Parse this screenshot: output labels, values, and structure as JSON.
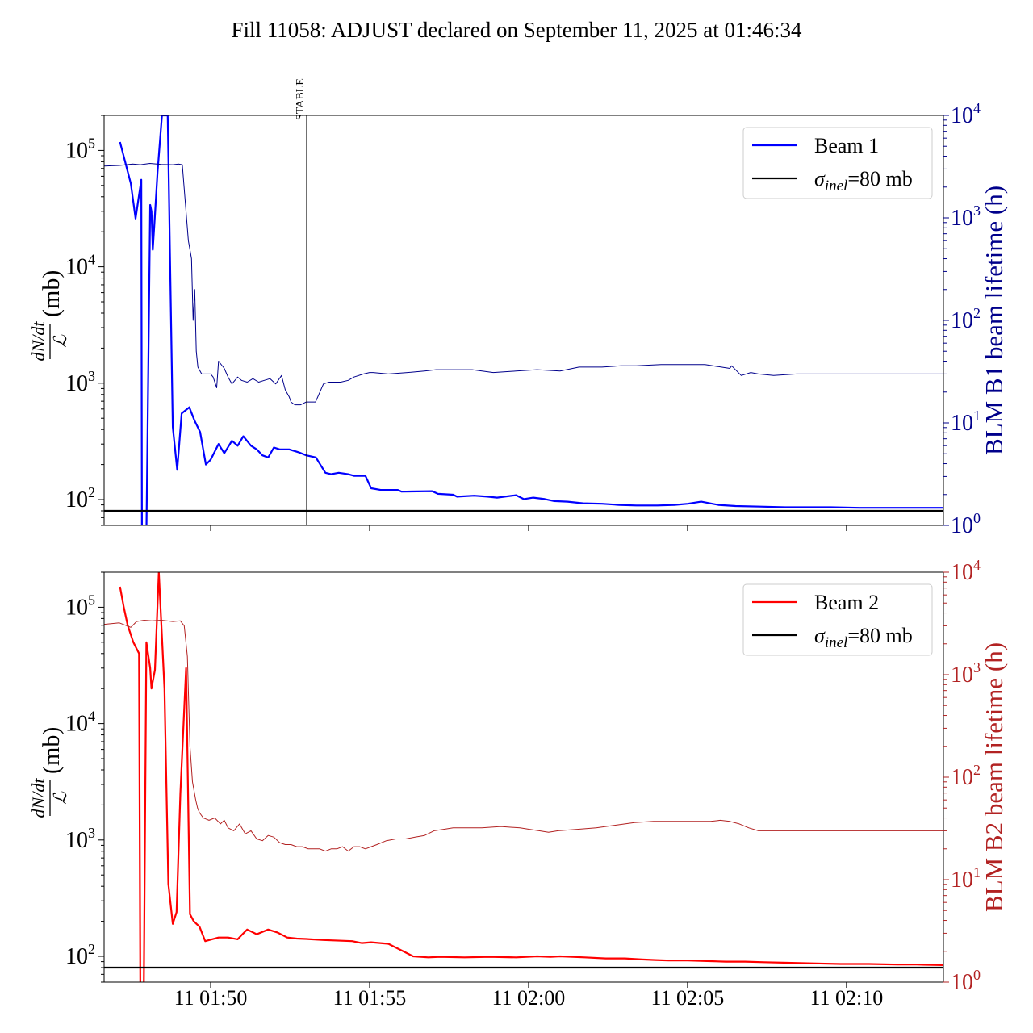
{
  "figure": {
    "title": "Fill 11058: ADJUST declared on September 11, 2025 at 01:46:34"
  },
  "chart_data": [
    {
      "type": "line",
      "panel": "top",
      "ylabel": "(mb)",
      "ylabel_fraction": {
        "numerator": "dN/dt",
        "denominator": "ℒ"
      },
      "y2label": "BLM B1 beam lifetime (h)",
      "yscale": "log",
      "ylim": [
        60,
        200000
      ],
      "y2lim": [
        1,
        10000
      ],
      "y_ticks": [
        {
          "base": "10",
          "exp": "2"
        },
        {
          "base": "10",
          "exp": "3"
        },
        {
          "base": "10",
          "exp": "4"
        },
        {
          "base": "10",
          "exp": "5"
        }
      ],
      "y2_ticks": [
        {
          "base": "10",
          "exp": "0"
        },
        {
          "base": "10",
          "exp": "1"
        },
        {
          "base": "10",
          "exp": "2"
        },
        {
          "base": "10",
          "exp": "3"
        },
        {
          "base": "10",
          "exp": "4"
        }
      ],
      "xlim_minutes": [
        1.15,
        27.55
      ],
      "x_tick_minutes": [
        4.5,
        9.5,
        14.5,
        19.5,
        24.5
      ],
      "x_tick_labels_shown": false,
      "grid": false,
      "legend_position": "top-right",
      "legend": [
        {
          "label": "Beam 1",
          "color": "#0000ff"
        },
        {
          "label": "σ",
          "sub": "inel",
          "suffix": "=80 mb",
          "color": "#000000"
        }
      ],
      "annotation": {
        "text": "STABLE",
        "x_minutes": 7.52
      },
      "colors": {
        "main": "#0000ff",
        "lifetime": "#00008b",
        "reference": "#000000",
        "axis2": "#00008b"
      },
      "reference_line": 80,
      "series": [
        {
          "name": "Beam 1",
          "role": "cross_section",
          "axis": "left",
          "x_minutes": [
            1.65,
            1.99,
            2.14,
            2.32,
            2.34,
            2.4,
            2.48,
            2.6,
            2.64,
            2.68,
            2.74,
            2.83,
            2.97,
            3.15,
            3.31,
            3.45,
            3.59,
            3.83,
            3.99,
            4.17,
            4.35,
            4.5,
            4.75,
            4.93,
            5.17,
            5.35,
            5.53,
            5.77,
            5.95,
            6.13,
            6.31,
            6.49,
            6.67,
            6.97,
            7.27,
            7.51,
            7.81,
            8.11,
            8.29,
            8.53,
            8.83,
            9.01,
            9.37,
            9.55,
            9.85,
            10.39,
            10.51,
            11.47,
            11.65,
            12.13,
            12.25,
            12.79,
            13.21,
            13.51,
            14.11,
            14.35,
            14.65,
            15.01,
            15.31,
            15.73,
            16.21,
            16.81,
            17.35,
            17.89,
            18.55,
            19.09,
            19.51,
            19.93,
            20.47,
            21.01,
            21.79,
            22.57,
            23.29,
            24.01,
            24.91,
            25.81,
            26.71,
            27.55
          ],
          "values": [
            118000,
            52000,
            26000,
            56000,
            50,
            50,
            50,
            34000,
            30000,
            14000,
            25000,
            65000,
            200000,
            200000,
            420,
            180,
            550,
            620,
            480,
            380,
            200,
            220,
            300,
            250,
            320,
            290,
            350,
            290,
            270,
            240,
            230,
            280,
            270,
            270,
            255,
            240,
            230,
            170,
            165,
            170,
            165,
            160,
            160,
            125,
            121,
            121,
            117,
            118,
            112,
            110,
            106,
            108,
            106,
            104,
            109,
            101,
            104,
            101,
            97,
            96,
            93,
            92,
            90,
            89,
            89,
            90,
            92,
            96,
            90,
            88,
            87,
            86,
            86,
            86,
            85,
            85,
            85,
            85
          ]
        },
        {
          "name": "BLM B1 beam lifetime",
          "role": "lifetime",
          "axis": "right",
          "x_minutes": [
            1.15,
            1.63,
            2.05,
            2.29,
            2.59,
            2.95,
            3.31,
            3.49,
            3.61,
            3.8,
            3.9,
            3.95,
            4.0,
            4.05,
            4.1,
            4.22,
            4.5,
            4.58,
            4.69,
            4.75,
            4.93,
            5.05,
            5.17,
            5.35,
            5.47,
            5.65,
            5.83,
            6.01,
            6.19,
            6.37,
            6.55,
            6.73,
            6.85,
            6.97,
            7.03,
            7.15,
            7.33,
            7.51,
            7.8,
            8.05,
            8.23,
            8.41,
            8.59,
            8.83,
            9.01,
            9.31,
            9.5,
            9.61,
            10.09,
            10.69,
            11.23,
            11.59,
            12.19,
            12.73,
            13.39,
            14.11,
            14.77,
            15.49,
            16.09,
            16.81,
            17.41,
            17.89,
            18.67,
            19.39,
            20.05,
            20.83,
            20.89,
            21.19,
            21.49,
            21.73,
            22.21,
            22.93,
            23.83,
            24.79,
            25.69,
            26.71,
            27.55
          ],
          "values": [
            3200,
            3250,
            3350,
            3300,
            3400,
            3320,
            3300,
            3350,
            3300,
            600,
            400,
            100,
            200,
            50,
            35,
            30,
            30,
            28,
            22,
            40,
            34,
            28,
            24,
            28,
            26,
            25,
            27,
            25,
            26,
            27,
            24,
            29,
            21,
            18,
            16,
            15,
            15,
            16,
            16,
            24,
            25,
            25,
            25,
            26,
            28,
            30,
            31,
            31,
            30,
            31,
            32,
            33,
            33,
            33,
            31,
            32,
            33,
            32,
            35,
            35,
            36,
            36,
            37,
            37,
            37,
            34,
            36,
            29,
            31,
            30,
            29,
            30,
            30,
            30,
            30,
            30,
            30
          ]
        },
        {
          "name": "σinel=80 mb",
          "role": "reference",
          "axis": "left",
          "x_minutes": [
            1.15,
            27.55
          ],
          "values": [
            80,
            80
          ]
        }
      ]
    },
    {
      "type": "line",
      "panel": "bottom",
      "ylabel": "(mb)",
      "ylabel_fraction": {
        "numerator": "dN/dt",
        "denominator": "ℒ"
      },
      "y2label": "BLM B2 beam lifetime (h)",
      "yscale": "log",
      "ylim": [
        60,
        200000
      ],
      "y2lim": [
        1,
        10000
      ],
      "y_ticks": [
        {
          "base": "10",
          "exp": "2"
        },
        {
          "base": "10",
          "exp": "3"
        },
        {
          "base": "10",
          "exp": "4"
        },
        {
          "base": "10",
          "exp": "5"
        }
      ],
      "y2_ticks": [
        {
          "base": "10",
          "exp": "0"
        },
        {
          "base": "10",
          "exp": "1"
        },
        {
          "base": "10",
          "exp": "2"
        },
        {
          "base": "10",
          "exp": "3"
        },
        {
          "base": "10",
          "exp": "4"
        }
      ],
      "xlim_minutes": [
        1.15,
        27.55
      ],
      "x_tick_minutes": [
        4.5,
        9.5,
        14.5,
        19.5,
        24.5
      ],
      "x_tick_labels": [
        "11 01:50",
        "11 01:55",
        "11 02:00",
        "11 02:05",
        "11 02:10"
      ],
      "x_tick_labels_shown": true,
      "grid": false,
      "legend_position": "top-right",
      "legend": [
        {
          "label": "Beam 2",
          "color": "#ff0000"
        },
        {
          "label": "σ",
          "sub": "inel",
          "suffix": "=80 mb",
          "color": "#000000"
        }
      ],
      "colors": {
        "main": "#ff0000",
        "lifetime": "#b22222",
        "reference": "#000000",
        "axis2": "#b22222"
      },
      "reference_line": 80,
      "series": [
        {
          "name": "Beam 2",
          "role": "cross_section",
          "axis": "left",
          "x_minutes": [
            1.65,
            1.77,
            1.89,
            2.07,
            2.25,
            2.29,
            2.34,
            2.4,
            2.48,
            2.6,
            2.64,
            2.75,
            2.87,
            3.05,
            3.17,
            3.31,
            3.43,
            3.55,
            3.73,
            3.85,
            3.97,
            4.15,
            4.33,
            4.75,
            5.05,
            5.35,
            5.5,
            5.65,
            5.95,
            6.31,
            6.61,
            6.91,
            7.21,
            7.51,
            8.05,
            8.95,
            9.25,
            9.55,
            10.09,
            10.57,
            10.87,
            11.35,
            11.71,
            12.49,
            13.27,
            14.11,
            14.77,
            15.19,
            15.49,
            16.27,
            16.93,
            17.53,
            18.07,
            18.49,
            18.91,
            19.51,
            20.11,
            20.71,
            21.31,
            21.91,
            22.63,
            23.41,
            24.31,
            25.21,
            26.11,
            26.71,
            27.55
          ],
          "values": [
            150000,
            100000,
            70000,
            50000,
            40000,
            50,
            50,
            50,
            50000,
            30000,
            20000,
            29000,
            200000,
            20000,
            420,
            190,
            240,
            2500,
            30000,
            230,
            200,
            180,
            135,
            145,
            145,
            140,
            155,
            170,
            155,
            170,
            160,
            145,
            142,
            141,
            138,
            135,
            130,
            132,
            128,
            110,
            100,
            98,
            99,
            98,
            99,
            98,
            100,
            99,
            100,
            98,
            96,
            96,
            94,
            93,
            92,
            92,
            91,
            90,
            90,
            89,
            88,
            87,
            86,
            86,
            85,
            85,
            84
          ]
        },
        {
          "name": "BLM B2 beam lifetime",
          "role": "lifetime",
          "axis": "right",
          "x_minutes": [
            1.15,
            1.63,
            1.99,
            2.17,
            2.41,
            2.65,
            2.95,
            3.31,
            3.55,
            3.67,
            3.77,
            3.85,
            3.93,
            4.03,
            4.09,
            4.15,
            4.27,
            4.45,
            4.63,
            4.81,
            4.93,
            5.05,
            5.23,
            5.41,
            5.59,
            5.77,
            5.95,
            6.13,
            6.31,
            6.49,
            6.67,
            6.85,
            7.03,
            7.21,
            7.39,
            7.57,
            7.75,
            7.93,
            8.11,
            8.29,
            8.47,
            8.65,
            8.83,
            9.01,
            9.19,
            9.37,
            9.55,
            9.73,
            10.03,
            10.33,
            10.63,
            10.93,
            11.23,
            11.53,
            11.83,
            12.13,
            12.43,
            13.03,
            13.63,
            14.23,
            14.53,
            14.83,
            15.13,
            15.43,
            16.03,
            16.63,
            16.93,
            17.23,
            17.53,
            17.83,
            18.43,
            19.03,
            19.63,
            20.23,
            20.53,
            20.83,
            21.13,
            21.43,
            21.73,
            22.33,
            22.93,
            23.53,
            24.13,
            24.73,
            25.33,
            25.93,
            26.53,
            27.55
          ],
          "values": [
            3100,
            3200,
            2900,
            3300,
            3400,
            3350,
            3400,
            3300,
            3350,
            3000,
            1500,
            200,
            90,
            60,
            50,
            45,
            40,
            38,
            40,
            35,
            38,
            32,
            30,
            35,
            28,
            30,
            25,
            24,
            27,
            26,
            23,
            22,
            22,
            21,
            21,
            20,
            20,
            20,
            19,
            20,
            20,
            21,
            19,
            21,
            21,
            20,
            21,
            22,
            24,
            25,
            25,
            26,
            27,
            30,
            31,
            32,
            32,
            32,
            33,
            32,
            31,
            30,
            29,
            30,
            31,
            32,
            33,
            34,
            35,
            36,
            37,
            37,
            37,
            37,
            38,
            37,
            35,
            32,
            30,
            30,
            30,
            30,
            30,
            30,
            30,
            30,
            30,
            30
          ]
        },
        {
          "name": "σinel=80 mb",
          "role": "reference",
          "axis": "left",
          "x_minutes": [
            1.15,
            27.55
          ],
          "values": [
            80,
            80
          ]
        }
      ]
    }
  ]
}
